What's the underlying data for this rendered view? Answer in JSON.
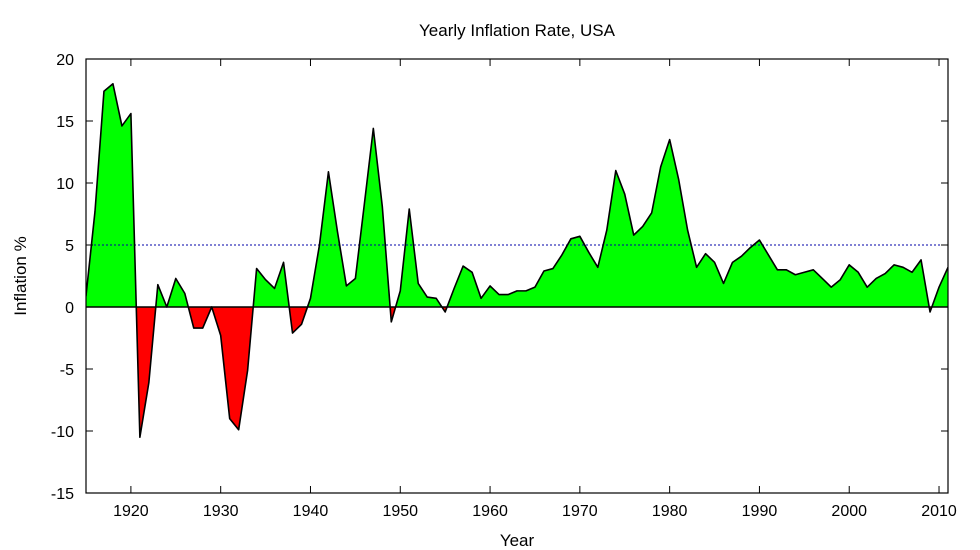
{
  "chart_data": {
    "type": "area",
    "title": "Yearly Inflation Rate, USA",
    "xlabel": "Year",
    "ylabel": "Inflation %",
    "xlim": [
      1915,
      2011
    ],
    "ylim": [
      -15,
      20
    ],
    "xticks": [
      1920,
      1930,
      1940,
      1950,
      1960,
      1970,
      1980,
      1990,
      2000,
      2010
    ],
    "yticks": [
      -15,
      -10,
      -5,
      0,
      5,
      10,
      15,
      20
    ],
    "reference_line": {
      "y": 5,
      "style": "dotted",
      "color": "#0000aa"
    },
    "grid": false,
    "colors": {
      "positive": "#00ff00",
      "negative": "#ff0000",
      "line": "#000000"
    },
    "series": [
      {
        "x": [
          1914,
          1915,
          1916,
          1917,
          1918,
          1919,
          1920,
          1921,
          1922,
          1923,
          1924,
          1925,
          1926,
          1927,
          1928,
          1929,
          1930,
          1931,
          1932,
          1933,
          1934,
          1935,
          1936,
          1937,
          1938,
          1939,
          1940,
          1941,
          1942,
          1943,
          1944,
          1945,
          1946,
          1947,
          1948,
          1949,
          1950,
          1951,
          1952,
          1953,
          1954,
          1955,
          1956,
          1957,
          1958,
          1959,
          1960,
          1961,
          1962,
          1963,
          1964,
          1965,
          1966,
          1967,
          1968,
          1969,
          1970,
          1971,
          1972,
          1973,
          1974,
          1975,
          1976,
          1977,
          1978,
          1979,
          1980,
          1981,
          1982,
          1983,
          1984,
          1985,
          1986,
          1987,
          1988,
          1989,
          1990,
          1991,
          1992,
          1993,
          1994,
          1995,
          1996,
          1997,
          1998,
          1999,
          2000,
          2001,
          2002,
          2003,
          2004,
          2005,
          2006,
          2007,
          2008,
          2009,
          2010,
          2011
        ],
        "values": [
          1.3,
          0.9,
          7.7,
          17.4,
          18.0,
          14.6,
          15.6,
          -10.5,
          -6.1,
          1.8,
          0.0,
          2.3,
          1.1,
          -1.7,
          -1.7,
          0.0,
          -2.3,
          -9.0,
          -9.9,
          -5.1,
          3.1,
          2.2,
          1.5,
          3.6,
          -2.1,
          -1.4,
          0.7,
          5.0,
          10.9,
          6.1,
          1.7,
          2.3,
          8.3,
          14.4,
          8.1,
          -1.2,
          1.3,
          7.9,
          1.9,
          0.8,
          0.7,
          -0.4,
          1.5,
          3.3,
          2.8,
          0.7,
          1.7,
          1.0,
          1.0,
          1.3,
          1.3,
          1.6,
          2.9,
          3.1,
          4.2,
          5.5,
          5.7,
          4.4,
          3.2,
          6.2,
          11.0,
          9.1,
          5.8,
          6.5,
          7.6,
          11.3,
          13.5,
          10.3,
          6.2,
          3.2,
          4.3,
          3.6,
          1.9,
          3.6,
          4.1,
          4.8,
          5.4,
          4.2,
          3.0,
          3.0,
          2.6,
          2.8,
          3.0,
          2.3,
          1.6,
          2.2,
          3.4,
          2.8,
          1.6,
          2.3,
          2.7,
          3.4,
          3.2,
          2.8,
          3.8,
          -0.4,
          1.6,
          3.2
        ]
      }
    ]
  }
}
